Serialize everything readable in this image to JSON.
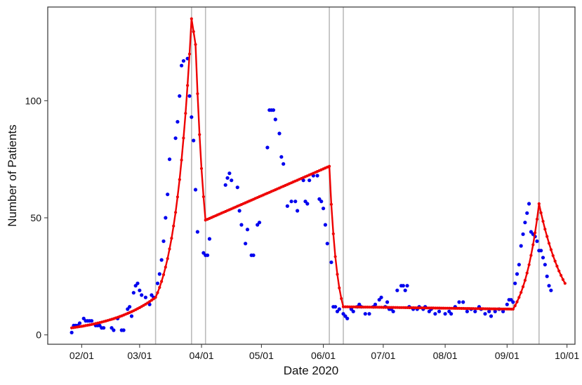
{
  "chart_data": {
    "type": "scatter",
    "title": "",
    "xlabel": "Date 2020",
    "ylabel": "Number of Patients",
    "x_axis": {
      "kind": "date",
      "range": [
        "2020-01-15",
        "2020-10-05"
      ],
      "ticks": [
        {
          "date": "2020-02-01",
          "label": "02/01"
        },
        {
          "date": "2020-03-01",
          "label": "03/01"
        },
        {
          "date": "2020-04-01",
          "label": "04/01"
        },
        {
          "date": "2020-05-01",
          "label": "05/01"
        },
        {
          "date": "2020-06-01",
          "label": "06/01"
        },
        {
          "date": "2020-07-01",
          "label": "07/01"
        },
        {
          "date": "2020-08-01",
          "label": "08/01"
        },
        {
          "date": "2020-09-01",
          "label": "09/01"
        },
        {
          "date": "2020-10-01",
          "label": "10/01"
        }
      ]
    },
    "y_axis": {
      "range": [
        -4,
        140
      ],
      "ticks": [
        {
          "value": 0,
          "label": "0"
        },
        {
          "value": 50,
          "label": "50"
        },
        {
          "value": 100,
          "label": "100"
        }
      ]
    },
    "grid": false,
    "colors": {
      "points": "#0000ee",
      "fit": "#ee0000",
      "breakpoints": "#bbbbbb",
      "frame": "#333333"
    },
    "breakpoints": [
      "2020-03-09",
      "2020-03-27",
      "2020-04-03",
      "2020-06-04",
      "2020-06-11",
      "2020-09-04",
      "2020-09-17"
    ],
    "series": [
      {
        "role": "observed",
        "points": [
          [
            "2020-01-27",
            1
          ],
          [
            "2020-01-28",
            4
          ],
          [
            "2020-01-29",
            4
          ],
          [
            "2020-01-30",
            4
          ],
          [
            "2020-01-31",
            5
          ],
          [
            "2020-02-02",
            7
          ],
          [
            "2020-02-03",
            6
          ],
          [
            "2020-02-04",
            6
          ],
          [
            "2020-02-05",
            6
          ],
          [
            "2020-02-06",
            6
          ],
          [
            "2020-02-08",
            4
          ],
          [
            "2020-02-09",
            4
          ],
          [
            "2020-02-10",
            4
          ],
          [
            "2020-02-11",
            3
          ],
          [
            "2020-02-12",
            3
          ],
          [
            "2020-02-16",
            3
          ],
          [
            "2020-02-17",
            2
          ],
          [
            "2020-02-19",
            7
          ],
          [
            "2020-02-21",
            2
          ],
          [
            "2020-02-22",
            2
          ],
          [
            "2020-02-24",
            11
          ],
          [
            "2020-02-25",
            12
          ],
          [
            "2020-02-26",
            8
          ],
          [
            "2020-02-27",
            18
          ],
          [
            "2020-02-28",
            21
          ],
          [
            "2020-02-29",
            22
          ],
          [
            "2020-03-01",
            19
          ],
          [
            "2020-03-02",
            17
          ],
          [
            "2020-03-04",
            16
          ],
          [
            "2020-03-06",
            13
          ],
          [
            "2020-03-07",
            17
          ],
          [
            "2020-03-08",
            16
          ],
          [
            "2020-03-10",
            22
          ],
          [
            "2020-03-11",
            26
          ],
          [
            "2020-03-12",
            32
          ],
          [
            "2020-03-13",
            40
          ],
          [
            "2020-03-14",
            50
          ],
          [
            "2020-03-15",
            60
          ],
          [
            "2020-03-16",
            75
          ],
          [
            "2020-03-19",
            84
          ],
          [
            "2020-03-20",
            91
          ],
          [
            "2020-03-21",
            102
          ],
          [
            "2020-03-22",
            115
          ],
          [
            "2020-03-23",
            117
          ],
          [
            "2020-03-25",
            118
          ],
          [
            "2020-03-26",
            102
          ],
          [
            "2020-03-27",
            93
          ],
          [
            "2020-03-28",
            83
          ],
          [
            "2020-03-29",
            62
          ],
          [
            "2020-03-30",
            44
          ],
          [
            "2020-04-02",
            35
          ],
          [
            "2020-04-03",
            34
          ],
          [
            "2020-04-04",
            34
          ],
          [
            "2020-04-05",
            41
          ],
          [
            "2020-04-13",
            64
          ],
          [
            "2020-04-14",
            67
          ],
          [
            "2020-04-15",
            69
          ],
          [
            "2020-04-16",
            66
          ],
          [
            "2020-04-19",
            63
          ],
          [
            "2020-04-20",
            53
          ],
          [
            "2020-04-21",
            47
          ],
          [
            "2020-04-23",
            39
          ],
          [
            "2020-04-24",
            45
          ],
          [
            "2020-04-26",
            34
          ],
          [
            "2020-04-27",
            34
          ],
          [
            "2020-04-29",
            47
          ],
          [
            "2020-04-30",
            48
          ],
          [
            "2020-05-04",
            80
          ],
          [
            "2020-05-05",
            96
          ],
          [
            "2020-05-06",
            96
          ],
          [
            "2020-05-07",
            96
          ],
          [
            "2020-05-08",
            92
          ],
          [
            "2020-05-10",
            86
          ],
          [
            "2020-05-11",
            76
          ],
          [
            "2020-05-12",
            73
          ],
          [
            "2020-05-14",
            55
          ],
          [
            "2020-05-16",
            57
          ],
          [
            "2020-05-18",
            57
          ],
          [
            "2020-05-19",
            53
          ],
          [
            "2020-05-22",
            66
          ],
          [
            "2020-05-23",
            57
          ],
          [
            "2020-05-24",
            56
          ],
          [
            "2020-05-25",
            66
          ],
          [
            "2020-05-27",
            68
          ],
          [
            "2020-05-29",
            68
          ],
          [
            "2020-05-30",
            58
          ],
          [
            "2020-05-31",
            57
          ],
          [
            "2020-06-01",
            54
          ],
          [
            "2020-06-02",
            47
          ],
          [
            "2020-06-03",
            39
          ],
          [
            "2020-06-05",
            31
          ],
          [
            "2020-06-06",
            12
          ],
          [
            "2020-06-07",
            12
          ],
          [
            "2020-06-08",
            10
          ],
          [
            "2020-06-09",
            11
          ],
          [
            "2020-06-11",
            9
          ],
          [
            "2020-06-12",
            8
          ],
          [
            "2020-06-13",
            7
          ],
          [
            "2020-06-15",
            11
          ],
          [
            "2020-06-16",
            10
          ],
          [
            "2020-06-18",
            12
          ],
          [
            "2020-06-19",
            13
          ],
          [
            "2020-06-20",
            12
          ],
          [
            "2020-06-22",
            9
          ],
          [
            "2020-06-24",
            9
          ],
          [
            "2020-06-26",
            12
          ],
          [
            "2020-06-27",
            13
          ],
          [
            "2020-06-29",
            15
          ],
          [
            "2020-06-30",
            16
          ],
          [
            "2020-07-02",
            12
          ],
          [
            "2020-07-03",
            14
          ],
          [
            "2020-07-04",
            11
          ],
          [
            "2020-07-05",
            11
          ],
          [
            "2020-07-06",
            10
          ],
          [
            "2020-07-08",
            19
          ],
          [
            "2020-07-10",
            21
          ],
          [
            "2020-07-11",
            21
          ],
          [
            "2020-07-12",
            19
          ],
          [
            "2020-07-13",
            21
          ],
          [
            "2020-07-14",
            12
          ],
          [
            "2020-07-16",
            11
          ],
          [
            "2020-07-18",
            11
          ],
          [
            "2020-07-19",
            12
          ],
          [
            "2020-07-21",
            11
          ],
          [
            "2020-07-22",
            12
          ],
          [
            "2020-07-24",
            10
          ],
          [
            "2020-07-25",
            11
          ],
          [
            "2020-07-27",
            9
          ],
          [
            "2020-07-29",
            10
          ],
          [
            "2020-08-01",
            9
          ],
          [
            "2020-08-03",
            10
          ],
          [
            "2020-08-04",
            9
          ],
          [
            "2020-08-06",
            12
          ],
          [
            "2020-08-08",
            14
          ],
          [
            "2020-08-10",
            14
          ],
          [
            "2020-08-12",
            10
          ],
          [
            "2020-08-14",
            11
          ],
          [
            "2020-08-16",
            10
          ],
          [
            "2020-08-18",
            12
          ],
          [
            "2020-08-19",
            11
          ],
          [
            "2020-08-21",
            9
          ],
          [
            "2020-08-23",
            10
          ],
          [
            "2020-08-24",
            8
          ],
          [
            "2020-08-26",
            10
          ],
          [
            "2020-08-28",
            11
          ],
          [
            "2020-08-30",
            10
          ],
          [
            "2020-09-01",
            13
          ],
          [
            "2020-09-02",
            15
          ],
          [
            "2020-09-03",
            15
          ],
          [
            "2020-09-04",
            14
          ],
          [
            "2020-09-05",
            22
          ],
          [
            "2020-09-06",
            26
          ],
          [
            "2020-09-07",
            30
          ],
          [
            "2020-09-08",
            38
          ],
          [
            "2020-09-09",
            43
          ],
          [
            "2020-09-10",
            48
          ],
          [
            "2020-09-11",
            52
          ],
          [
            "2020-09-12",
            56
          ],
          [
            "2020-09-13",
            44
          ],
          [
            "2020-09-14",
            43
          ],
          [
            "2020-09-15",
            42
          ],
          [
            "2020-09-16",
            40
          ],
          [
            "2020-09-17",
            36
          ],
          [
            "2020-09-18",
            36
          ],
          [
            "2020-09-19",
            33
          ],
          [
            "2020-09-20",
            30
          ],
          [
            "2020-09-21",
            25
          ],
          [
            "2020-09-22",
            21
          ],
          [
            "2020-09-23",
            19
          ]
        ]
      },
      {
        "role": "fitted",
        "segments": [
          {
            "kind": "exponential",
            "start": [
              "2020-01-27",
              3
            ],
            "end": [
              "2020-03-09",
              16
            ]
          },
          {
            "kind": "exponential",
            "start": [
              "2020-03-09",
              16
            ],
            "end": [
              "2020-03-27",
              135
            ]
          },
          {
            "kind": "linear",
            "start": [
              "2020-03-27",
              135
            ],
            "end": [
              "2020-03-29",
              124
            ]
          },
          {
            "kind": "exponential",
            "start": [
              "2020-03-29",
              124
            ],
            "end": [
              "2020-04-03",
              49
            ]
          },
          {
            "kind": "linear",
            "start": [
              "2020-04-03",
              49
            ],
            "end": [
              "2020-06-04",
              72
            ]
          },
          {
            "kind": "exponential",
            "start": [
              "2020-06-04",
              72
            ],
            "end": [
              "2020-06-11",
              12
            ]
          },
          {
            "kind": "linear",
            "start": [
              "2020-06-11",
              12
            ],
            "end": [
              "2020-09-04",
              11
            ]
          },
          {
            "kind": "exponential",
            "start": [
              "2020-09-04",
              11
            ],
            "end": [
              "2020-09-17",
              56
            ]
          },
          {
            "kind": "exponential",
            "start": [
              "2020-09-17",
              56
            ],
            "end": [
              "2020-09-30",
              22
            ]
          }
        ]
      }
    ]
  }
}
